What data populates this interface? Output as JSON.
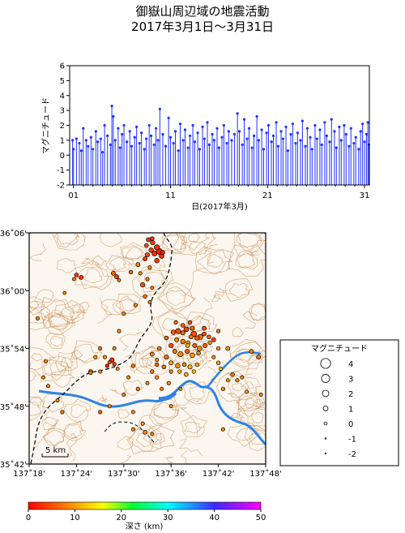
{
  "title_line1": "御嶽山周辺域の地震活動",
  "title_line2": "2017年3月1日～3月31日",
  "colors": {
    "stem": "#1f33ff",
    "contour": "#c58a4f",
    "river": "#2d83e6",
    "frame": "#000000"
  },
  "chart_data": [
    {
      "type": "bar",
      "subtype": "stem",
      "ylabel": "マグニチュード",
      "xlabel": "日(2017年3月)",
      "x_ticks": [
        "01",
        "11",
        "21",
        "31"
      ],
      "x_tick_days": [
        1,
        11,
        21,
        31
      ],
      "xlim": [
        0.6,
        31.5
      ],
      "ylim": [
        -2,
        6
      ],
      "y_ticks": [
        -2,
        -1,
        0,
        1,
        2,
        3,
        4,
        5,
        6
      ],
      "baseline": -2,
      "grid": false,
      "points": [
        [
          0.9,
          1.0
        ],
        [
          1.0,
          0.4
        ],
        [
          1.3,
          1.1
        ],
        [
          1.6,
          0.8
        ],
        [
          1.8,
          0.3
        ],
        [
          2.0,
          1.8
        ],
        [
          2.3,
          1.0
        ],
        [
          2.5,
          0.6
        ],
        [
          2.8,
          1.2
        ],
        [
          3.0,
          0.4
        ],
        [
          3.3,
          1.6
        ],
        [
          3.5,
          0.9
        ],
        [
          3.8,
          1.1
        ],
        [
          4.0,
          0.2
        ],
        [
          4.2,
          2.0
        ],
        [
          4.5,
          1.3
        ],
        [
          4.8,
          0.7
        ],
        [
          4.95,
          3.3
        ],
        [
          5.1,
          2.6
        ],
        [
          5.3,
          1.0
        ],
        [
          5.6,
          1.8
        ],
        [
          5.8,
          0.5
        ],
        [
          6.0,
          1.4
        ],
        [
          6.2,
          2.0
        ],
        [
          6.5,
          0.9
        ],
        [
          6.8,
          1.6
        ],
        [
          7.0,
          0.6
        ],
        [
          7.3,
          1.2
        ],
        [
          7.5,
          1.9
        ],
        [
          7.8,
          0.8
        ],
        [
          8.0,
          1.5
        ],
        [
          8.3,
          0.4
        ],
        [
          8.5,
          1.1
        ],
        [
          8.8,
          2.0
        ],
        [
          9.0,
          1.3
        ],
        [
          9.3,
          0.7
        ],
        [
          9.5,
          1.8
        ],
        [
          9.7,
          1.0
        ],
        [
          9.9,
          3.1
        ],
        [
          10.2,
          1.4
        ],
        [
          10.5,
          0.6
        ],
        [
          10.8,
          2.5
        ],
        [
          11.0,
          1.2
        ],
        [
          11.3,
          0.8
        ],
        [
          11.5,
          1.6
        ],
        [
          11.8,
          0.3
        ],
        [
          12.0,
          2.1
        ],
        [
          12.3,
          1.0
        ],
        [
          12.5,
          1.7
        ],
        [
          12.8,
          0.5
        ],
        [
          13.0,
          1.3
        ],
        [
          13.3,
          2.0
        ],
        [
          13.5,
          0.9
        ],
        [
          13.8,
          1.5
        ],
        [
          14.0,
          0.4
        ],
        [
          14.3,
          1.9
        ],
        [
          14.5,
          1.1
        ],
        [
          14.8,
          2.2
        ],
        [
          15.0,
          0.7
        ],
        [
          15.3,
          1.4
        ],
        [
          15.5,
          1.0
        ],
        [
          15.8,
          1.8
        ],
        [
          16.0,
          0.5
        ],
        [
          16.3,
          1.2
        ],
        [
          16.5,
          2.0
        ],
        [
          16.8,
          0.8
        ],
        [
          17.0,
          1.6
        ],
        [
          17.3,
          1.0
        ],
        [
          17.6,
          1.4
        ],
        [
          17.9,
          2.8
        ],
        [
          18.1,
          1.6
        ],
        [
          18.4,
          0.7
        ],
        [
          18.6,
          2.4
        ],
        [
          18.9,
          1.1
        ],
        [
          19.1,
          1.8
        ],
        [
          19.4,
          0.5
        ],
        [
          19.6,
          1.3
        ],
        [
          19.9,
          2.6
        ],
        [
          20.1,
          1.0
        ],
        [
          20.4,
          1.7
        ],
        [
          20.6,
          0.4
        ],
        [
          20.9,
          1.5
        ],
        [
          21.1,
          2.0
        ],
        [
          21.4,
          0.9
        ],
        [
          21.6,
          1.3
        ],
        [
          21.9,
          2.2
        ],
        [
          22.1,
          0.6
        ],
        [
          22.4,
          1.6
        ],
        [
          22.6,
          1.1
        ],
        [
          22.9,
          1.9
        ],
        [
          23.1,
          0.3
        ],
        [
          23.4,
          1.4
        ],
        [
          23.6,
          2.1
        ],
        [
          23.9,
          0.8
        ],
        [
          24.1,
          1.5
        ],
        [
          24.4,
          1.0
        ],
        [
          24.6,
          2.3
        ],
        [
          24.9,
          0.6
        ],
        [
          25.1,
          1.8
        ],
        [
          25.4,
          1.2
        ],
        [
          25.6,
          0.4
        ],
        [
          25.9,
          2.0
        ],
        [
          26.1,
          1.1
        ],
        [
          26.4,
          1.7
        ],
        [
          26.6,
          0.7
        ],
        [
          26.9,
          2.2
        ],
        [
          27.1,
          1.3
        ],
        [
          27.4,
          0.9
        ],
        [
          27.6,
          2.4
        ],
        [
          27.9,
          1.6
        ],
        [
          28.1,
          0.5
        ],
        [
          28.4,
          1.9
        ],
        [
          28.6,
          1.0
        ],
        [
          28.9,
          2.0
        ],
        [
          29.1,
          1.4
        ],
        [
          29.4,
          0.6
        ],
        [
          29.6,
          1.8
        ],
        [
          29.9,
          0.8
        ],
        [
          30.1,
          1.2
        ],
        [
          30.4,
          0.4
        ],
        [
          30.6,
          1.6
        ],
        [
          30.8,
          2.1
        ],
        [
          31.0,
          0.9
        ],
        [
          31.2,
          1.4
        ],
        [
          31.35,
          2.2
        ],
        [
          31.45,
          0.7
        ]
      ]
    },
    {
      "type": "scatter",
      "subtype": "map",
      "xlim": [
        137.3,
        137.8
      ],
      "ylim": [
        35.7,
        36.1
      ],
      "x_ticks": [
        "137˚18'",
        "137˚24'",
        "137˚30'",
        "137˚36'",
        "137˚42'",
        "137˚48'"
      ],
      "x_tick_values": [
        137.3,
        137.4,
        137.5,
        137.6,
        137.7,
        137.8
      ],
      "y_ticks": [
        "36˚06'",
        "36˚00'",
        "35˚54'",
        "35˚48'",
        "35˚42'"
      ],
      "y_tick_values": [
        36.1,
        36.0,
        35.9,
        35.8,
        35.7
      ],
      "scale_bar": "5 km",
      "scale_bar_km": 5,
      "points": [
        [
          137.552,
          36.088,
          0.6,
          3
        ],
        [
          137.561,
          36.083,
          0.8,
          4
        ],
        [
          137.548,
          36.078,
          0.5,
          5
        ],
        [
          137.57,
          36.075,
          1.3,
          3
        ],
        [
          137.558,
          36.07,
          0.9,
          4
        ],
        [
          137.575,
          36.068,
          1.7,
          2
        ],
        [
          137.565,
          36.064,
          1.1,
          3
        ],
        [
          137.55,
          36.062,
          0.7,
          5
        ],
        [
          137.58,
          36.06,
          1.0,
          3
        ],
        [
          137.545,
          36.055,
          0.6,
          4
        ],
        [
          137.57,
          36.052,
          0.9,
          4
        ],
        [
          137.582,
          36.066,
          0.8,
          2
        ],
        [
          137.56,
          36.09,
          0.5,
          3
        ],
        [
          137.53,
          36.045,
          0.6,
          8
        ],
        [
          137.555,
          36.04,
          0.3,
          9
        ],
        [
          137.515,
          36.032,
          0.4,
          7
        ],
        [
          137.535,
          36.03,
          0.2,
          9
        ],
        [
          137.55,
          36.02,
          0.3,
          8
        ],
        [
          137.54,
          36.01,
          0.8,
          5
        ],
        [
          137.56,
          36.005,
          0.2,
          8
        ],
        [
          137.545,
          35.99,
          0.4,
          7
        ],
        [
          137.525,
          35.975,
          0.3,
          9
        ],
        [
          137.555,
          35.98,
          0.2,
          8
        ],
        [
          137.4,
          36.027,
          0.5,
          4
        ],
        [
          137.41,
          36.023,
          0.6,
          3
        ],
        [
          137.395,
          36.02,
          0.2,
          8
        ],
        [
          137.485,
          36.024,
          0.7,
          4
        ],
        [
          137.478,
          36.03,
          0.6,
          7
        ],
        [
          137.49,
          36.018,
          0.2,
          8
        ],
        [
          137.375,
          35.996,
          0.1,
          9
        ],
        [
          137.318,
          35.952,
          0.3,
          8
        ],
        [
          137.335,
          35.878,
          0.3,
          8
        ],
        [
          137.33,
          35.85,
          0.2,
          9
        ],
        [
          137.36,
          35.81,
          0.2,
          9
        ],
        [
          137.37,
          35.79,
          0.3,
          8
        ],
        [
          137.34,
          35.835,
          0.2,
          7
        ],
        [
          137.46,
          35.885,
          0.3,
          9
        ],
        [
          137.47,
          35.876,
          0.2,
          5
        ],
        [
          137.475,
          35.88,
          0.8,
          3
        ],
        [
          137.48,
          35.873,
          0.4,
          4
        ],
        [
          137.465,
          35.87,
          0.3,
          2
        ],
        [
          137.487,
          35.865,
          0.2,
          8
        ],
        [
          137.45,
          35.86,
          0.2,
          9
        ],
        [
          137.43,
          35.858,
          0.4,
          8
        ],
        [
          137.44,
          35.885,
          0.3,
          9
        ],
        [
          137.48,
          35.9,
          0.2,
          9
        ],
        [
          137.49,
          35.93,
          0.3,
          9
        ],
        [
          137.5,
          35.96,
          0.2,
          9
        ],
        [
          137.52,
          35.87,
          0.4,
          8
        ],
        [
          137.51,
          35.85,
          0.2,
          9
        ],
        [
          137.53,
          35.83,
          0.3,
          8
        ],
        [
          137.5,
          35.82,
          0.2,
          9
        ],
        [
          137.47,
          35.8,
          0.2,
          9
        ],
        [
          137.45,
          35.79,
          0.3,
          7
        ],
        [
          137.52,
          35.79,
          0.2,
          9
        ],
        [
          137.54,
          35.77,
          0.3,
          9
        ],
        [
          137.545,
          35.755,
          0.5,
          9
        ],
        [
          137.56,
          35.752,
          0.2,
          9
        ],
        [
          137.52,
          35.76,
          0.2,
          9
        ],
        [
          137.55,
          35.84,
          0.2,
          9
        ],
        [
          137.56,
          35.86,
          0.3,
          8
        ],
        [
          137.57,
          35.88,
          0.2,
          9
        ],
        [
          137.57,
          35.85,
          0.4,
          9
        ],
        [
          137.58,
          35.83,
          0.2,
          9
        ],
        [
          137.6,
          35.8,
          0.2,
          9
        ],
        [
          137.605,
          35.928,
          0.9,
          6
        ],
        [
          137.615,
          35.93,
          1.2,
          5
        ],
        [
          137.625,
          35.927,
          0.7,
          7
        ],
        [
          137.632,
          35.933,
          1.0,
          4
        ],
        [
          137.642,
          35.92,
          0.6,
          8
        ],
        [
          137.648,
          35.925,
          1.4,
          5
        ],
        [
          137.655,
          35.918,
          0.8,
          6
        ],
        [
          137.662,
          35.92,
          1.1,
          7
        ],
        [
          137.67,
          35.925,
          0.5,
          5
        ],
        [
          137.612,
          35.915,
          0.6,
          9
        ],
        [
          137.625,
          35.912,
          0.9,
          8
        ],
        [
          137.636,
          35.91,
          0.5,
          10
        ],
        [
          137.65,
          35.905,
          0.7,
          6
        ],
        [
          137.66,
          35.9,
          1.0,
          9
        ],
        [
          137.6,
          35.905,
          0.8,
          5
        ],
        [
          137.59,
          35.918,
          0.5,
          7
        ],
        [
          137.608,
          35.895,
          0.6,
          8
        ],
        [
          137.62,
          35.89,
          1.2,
          9
        ],
        [
          137.634,
          35.895,
          0.7,
          6
        ],
        [
          137.645,
          35.888,
          0.9,
          10
        ],
        [
          137.658,
          35.892,
          0.5,
          9
        ],
        [
          137.672,
          35.905,
          0.7,
          6
        ],
        [
          137.682,
          35.91,
          0.4,
          9
        ],
        [
          137.59,
          35.885,
          0.8,
          7
        ],
        [
          137.575,
          35.9,
          0.5,
          8
        ],
        [
          137.6,
          35.875,
          0.6,
          11
        ],
        [
          137.614,
          35.87,
          0.9,
          10
        ],
        [
          137.628,
          35.872,
          0.5,
          9
        ],
        [
          137.64,
          35.868,
          0.7,
          12
        ],
        [
          137.655,
          35.872,
          0.4,
          11
        ],
        [
          137.648,
          35.86,
          0.3,
          13
        ],
        [
          137.632,
          35.855,
          0.5,
          12
        ],
        [
          137.618,
          35.86,
          0.4,
          11
        ],
        [
          137.6,
          35.86,
          0.3,
          9
        ],
        [
          137.585,
          35.868,
          0.5,
          8
        ],
        [
          137.57,
          35.872,
          0.4,
          7
        ],
        [
          137.56,
          35.89,
          0.6,
          9
        ],
        [
          137.625,
          35.94,
          0.5,
          6
        ],
        [
          137.64,
          35.945,
          0.4,
          5
        ],
        [
          137.61,
          35.945,
          0.3,
          7
        ],
        [
          137.67,
          35.935,
          0.6,
          5
        ],
        [
          137.68,
          35.92,
          0.5,
          6
        ],
        [
          137.69,
          35.915,
          0.6,
          5
        ],
        [
          137.7,
          35.93,
          0.3,
          8
        ],
        [
          137.7,
          35.9,
          0.4,
          9
        ],
        [
          137.69,
          35.885,
          0.3,
          9
        ],
        [
          137.7,
          35.875,
          0.4,
          11
        ],
        [
          137.72,
          35.9,
          0.6,
          10
        ],
        [
          137.705,
          35.865,
          0.3,
          12
        ],
        [
          137.73,
          35.855,
          0.4,
          8
        ],
        [
          137.72,
          35.845,
          0.2,
          9
        ],
        [
          137.74,
          35.845,
          0.3,
          9
        ],
        [
          137.71,
          35.83,
          0.4,
          9
        ],
        [
          137.75,
          35.85,
          0.2,
          9
        ],
        [
          137.77,
          35.895,
          0.5,
          9
        ],
        [
          137.785,
          35.885,
          0.7,
          7
        ],
        [
          137.76,
          35.825,
          0.2,
          9
        ],
        [
          137.79,
          35.82,
          0.2,
          9
        ],
        [
          137.595,
          35.84,
          0.3,
          9
        ],
        [
          137.62,
          35.83,
          0.2,
          9
        ],
        [
          137.71,
          35.76,
          0.2,
          9
        ],
        [
          137.45,
          35.9,
          0.3,
          8
        ],
        [
          137.43,
          35.86,
          0.6,
          9
        ],
        [
          137.635,
          35.905,
          0.5,
          12
        ],
        [
          137.645,
          35.935,
          0.8,
          6
        ]
      ]
    },
    {
      "type": "legend",
      "title": "マグニチュード",
      "labels": [
        "4",
        "3",
        "2",
        "1",
        "0",
        "-1",
        "-2"
      ],
      "magnitudes": [
        4,
        3,
        2,
        1,
        0,
        -1,
        -2
      ]
    },
    {
      "type": "colorbar",
      "label": "深さ (km)",
      "ticks": [
        "0",
        "10",
        "20",
        "30",
        "40",
        "50"
      ],
      "tick_values": [
        0,
        10,
        20,
        30,
        40,
        50
      ],
      "range": [
        0,
        50
      ]
    }
  ]
}
